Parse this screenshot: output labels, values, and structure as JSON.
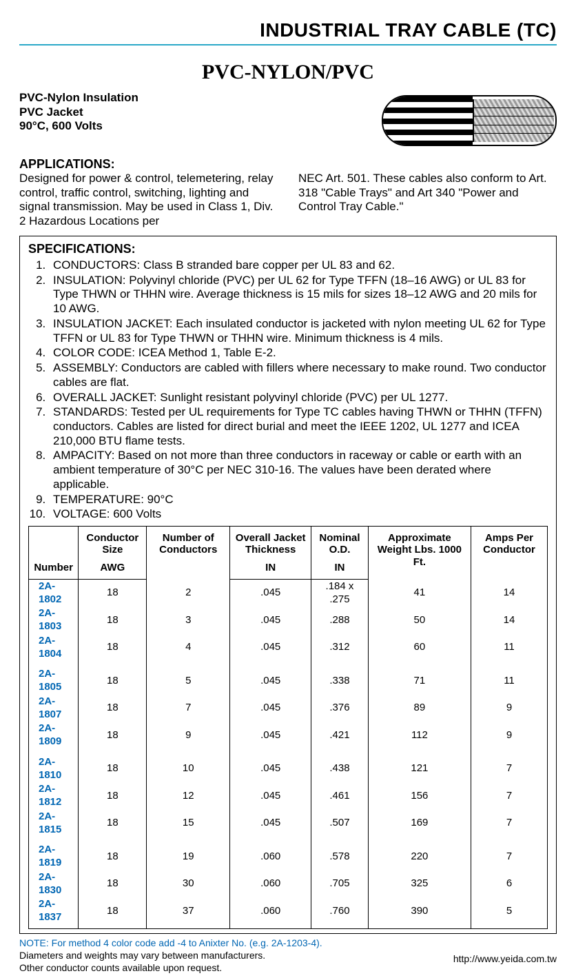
{
  "colors": {
    "rule": "#2aa8c8",
    "link_blue": "#0066b3",
    "text": "#000000",
    "background": "#ffffff"
  },
  "header": {
    "category": "INDUSTRIAL TRAY CABLE (TC)"
  },
  "title": "PVC-NYLON/PVC",
  "intro": {
    "line1": "PVC-Nylon Insulation",
    "line2": "PVC Jacket",
    "line3": "90°C, 600 Volts"
  },
  "applications": {
    "heading": "APPLICATIONS:",
    "col1": "Designed for power & control, telemetering, relay control, traffic control, switching, lighting and signal transmission. May be used in Class 1, Div. 2 Hazardous Locations per",
    "col2": "NEC Art. 501. These cables also conform to Art. 318 \"Cable Trays\" and Art 340 \"Power and Control Tray Cable.\""
  },
  "specifications": {
    "heading": "SPECIFICATIONS:",
    "items": [
      "CONDUCTORS: Class B stranded bare copper per UL 83 and 62.",
      "INSULATION: Polyvinyl chloride (PVC) per UL 62 for Type TFFN (18–16 AWG) or UL 83 for Type THWN or THHN wire. Average thickness is 15 mils for sizes 18–12 AWG and 20 mils for 10 AWG.",
      "INSULATION JACKET: Each insulated conductor is jacketed with nylon meeting UL 62 for Type TFFN or UL 83 for Type THWN or THHN wire. Minimum thickness is 4 mils.",
      "COLOR CODE: ICEA Method 1, Table E-2.",
      "ASSEMBLY: Conductors are cabled with fillers where necessary to make round. Two conductor cables are flat.",
      "OVERALL JACKET: Sunlight resistant polyvinyl chloride (PVC) per UL 1277.",
      "STANDARDS: Tested per UL requirements for Type TC cables having THWN or THHN (TFFN) conductors. Cables are listed for direct burial and meet the IEEE 1202, UL 1277 and ICEA 210,000 BTU flame tests.",
      "AMPACITY: Based on not more than three conductors in raceway or cable or earth with an ambient temperature of 30°C per NEC 310-16. The values have been derated where applicable.",
      "TEMPERATURE: 90°C",
      "VOLTAGE: 600 Volts"
    ]
  },
  "table": {
    "headers_top": [
      "",
      "Conductor Size",
      "Number of Conductors",
      "Overall Jacket Thickness",
      "Nominal O.D.",
      "Approximate Weight Lbs. 1000 Ft.",
      "Amps Per Conductor"
    ],
    "headers_bottom": [
      "Number",
      "AWG",
      "",
      "IN",
      "IN",
      "",
      ""
    ],
    "groups": [
      [
        {
          "num": "2A-1802",
          "awg": "18",
          "cond": "2",
          "thick": ".045",
          "od": ".184 x .275",
          "wt": "41",
          "amps": "14"
        },
        {
          "num": "2A-1803",
          "awg": "18",
          "cond": "3",
          "thick": ".045",
          "od": ".288",
          "wt": "50",
          "amps": "14"
        },
        {
          "num": "2A-1804",
          "awg": "18",
          "cond": "4",
          "thick": ".045",
          "od": ".312",
          "wt": "60",
          "amps": "11"
        }
      ],
      [
        {
          "num": "2A-1805",
          "awg": "18",
          "cond": "5",
          "thick": ".045",
          "od": ".338",
          "wt": "71",
          "amps": "11"
        },
        {
          "num": "2A-1807",
          "awg": "18",
          "cond": "7",
          "thick": ".045",
          "od": ".376",
          "wt": "89",
          "amps": "9"
        },
        {
          "num": "2A-1809",
          "awg": "18",
          "cond": "9",
          "thick": ".045",
          "od": ".421",
          "wt": "112",
          "amps": "9"
        }
      ],
      [
        {
          "num": "2A-1810",
          "awg": "18",
          "cond": "10",
          "thick": ".045",
          "od": ".438",
          "wt": "121",
          "amps": "7"
        },
        {
          "num": "2A-1812",
          "awg": "18",
          "cond": "12",
          "thick": ".045",
          "od": ".461",
          "wt": "156",
          "amps": "7"
        },
        {
          "num": "2A-1815",
          "awg": "18",
          "cond": "15",
          "thick": ".045",
          "od": ".507",
          "wt": "169",
          "amps": "7"
        }
      ],
      [
        {
          "num": "2A-1819",
          "awg": "18",
          "cond": "19",
          "thick": ".060",
          "od": ".578",
          "wt": "220",
          "amps": "7"
        },
        {
          "num": "2A-1830",
          "awg": "18",
          "cond": "30",
          "thick": ".060",
          "od": ".705",
          "wt": "325",
          "amps": "6"
        },
        {
          "num": "2A-1837",
          "awg": "18",
          "cond": "37",
          "thick": ".060",
          "od": ".760",
          "wt": "390",
          "amps": "5"
        }
      ]
    ]
  },
  "notes": {
    "line1": "NOTE: For method 4 color code add -4 to Anixter No. (e.g. 2A-1203-4).",
    "line2": "Diameters and weights may vary between manufacturers.",
    "line3": "Other conductor counts available upon request."
  },
  "footer": {
    "url": "http://www.yeida.com.tw"
  }
}
